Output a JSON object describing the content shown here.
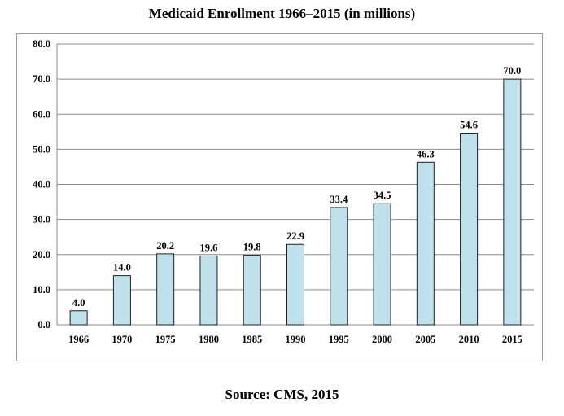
{
  "chart_data": {
    "type": "bar",
    "title": "Medicaid Enrollment 1966–2015 (in millions)",
    "source": "Source: CMS, 2015",
    "categories": [
      "1966",
      "1970",
      "1975",
      "1980",
      "1985",
      "1990",
      "1995",
      "2000",
      "2005",
      "2010",
      "2015"
    ],
    "values": [
      4.0,
      14.0,
      20.2,
      19.6,
      19.8,
      22.9,
      33.4,
      34.5,
      46.3,
      54.6,
      70.0
    ],
    "value_labels": [
      "4.0",
      "14.0",
      "20.2",
      "19.6",
      "19.8",
      "22.9",
      "33.4",
      "34.5",
      "46.3",
      "54.6",
      "70.0"
    ],
    "xlabel": "",
    "ylabel": "",
    "ylim": [
      0,
      80
    ],
    "yticks": [
      0,
      10,
      20,
      30,
      40,
      50,
      60,
      70,
      80
    ],
    "ytick_labels": [
      "0.0",
      "10.0",
      "20.0",
      "30.0",
      "40.0",
      "50.0",
      "60.0",
      "70.0",
      "80.0"
    ],
    "grid": true,
    "legend": "none",
    "colors": {
      "bar_fill": "#bfe1ec",
      "bar_stroke": "#1f1f1f",
      "grid": "#8c8c8c",
      "frame": "#9a9a9a"
    }
  }
}
